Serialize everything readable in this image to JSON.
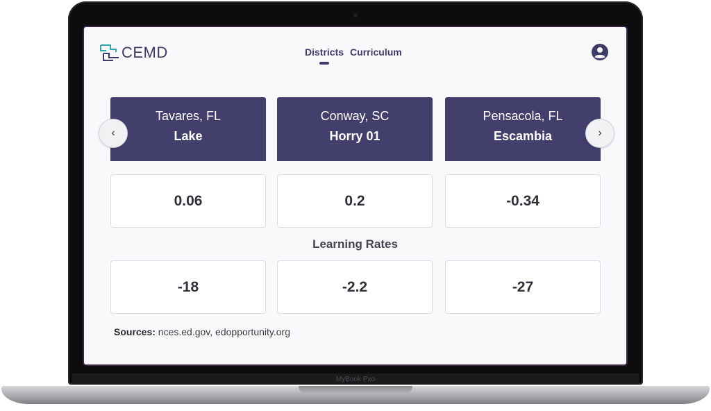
{
  "app": {
    "brand": "CEMD"
  },
  "nav": {
    "items": [
      {
        "label": "Districts"
      },
      {
        "label": "Curriculum"
      }
    ]
  },
  "districts": [
    {
      "city": "Tavares, FL",
      "name": "Lake",
      "score": "0.06",
      "learning_rate": "-18"
    },
    {
      "city": "Conway, SC",
      "name": "Horry 01",
      "score": "0.2",
      "learning_rate": "-2.2"
    },
    {
      "city": "Pensacola, FL",
      "name": "Escambia",
      "score": "-0.34",
      "learning_rate": "-27"
    }
  ],
  "labels": {
    "learning_rates": "Learning Rates",
    "sources_prefix": "Sources:",
    "sources_list": " nces.ed.gov,  edopportunity.org"
  },
  "carousel": {
    "prev_icon": "chevron-left-icon",
    "next_icon": "chevron-right-icon",
    "prev_glyph": "‹",
    "next_glyph": "›"
  },
  "device": {
    "label": "MyBook Pxo"
  },
  "colors": {
    "accent": "#433f6d",
    "logo_teal": "#2aa7a8",
    "background": "#f9f9fc"
  }
}
